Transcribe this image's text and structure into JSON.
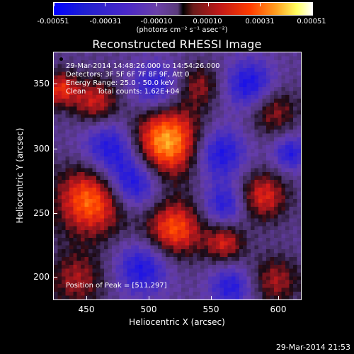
{
  "colorbar": {
    "tick_labels": [
      "-0.00051",
      "-0.00031",
      "-0.00010",
      "0.00010",
      "0.00031",
      "0.00051"
    ],
    "units": "(photons cm⁻² s⁻¹ asec⁻²)"
  },
  "title": "Reconstructed RHESSI Image",
  "annotations": {
    "time_range": "29-Mar-2014 14:48:26.000 to 14:54:26.000",
    "detectors": "Detectors: 3F 5F 6F 7F 8F 9F, Att 0",
    "energy": "Energy Range: 25.0 - 50.0 keV",
    "method": "Clean     Total counts: 1.62E+04",
    "peak": "Position of Peak = [511,297]"
  },
  "axes": {
    "xlabel": "Heliocentric X (arcsec)",
    "ylabel": "Heliocentric Y (arcsec)",
    "xticks": [
      "450",
      "500",
      "550",
      "600"
    ],
    "yticks": [
      "350",
      "300",
      "250",
      "200"
    ]
  },
  "footer": "29-Mar-2014 21:53",
  "image": {
    "xlim": [
      425,
      620
    ],
    "ylim": [
      180,
      376
    ],
    "blobs": [
      {
        "x": 514,
        "y": 305,
        "a": 1.0,
        "s": 20
      },
      {
        "x": 455,
        "y": 259,
        "a": 0.85,
        "s": 20
      },
      {
        "x": 520,
        "y": 236,
        "a": 0.75,
        "s": 16
      },
      {
        "x": 458,
        "y": 337,
        "a": 0.55,
        "s": 13
      },
      {
        "x": 590,
        "y": 262,
        "a": 0.6,
        "s": 14
      },
      {
        "x": 598,
        "y": 330,
        "a": 0.45,
        "s": 14
      },
      {
        "x": 540,
        "y": 350,
        "a": 0.4,
        "s": 12
      },
      {
        "x": 443,
        "y": 196,
        "a": 0.45,
        "s": 16
      },
      {
        "x": 600,
        "y": 195,
        "a": 0.45,
        "s": 14
      },
      {
        "x": 560,
        "y": 225,
        "a": 0.55,
        "s": 11
      },
      {
        "x": 430,
        "y": 347,
        "a": 0.6,
        "s": 10
      },
      {
        "x": 487,
        "y": 272,
        "a": -0.7,
        "s": 15
      },
      {
        "x": 555,
        "y": 296,
        "a": -0.6,
        "s": 15
      },
      {
        "x": 470,
        "y": 300,
        "a": -0.6,
        "s": 16
      },
      {
        "x": 505,
        "y": 348,
        "a": -0.5,
        "s": 14
      },
      {
        "x": 580,
        "y": 350,
        "a": -0.6,
        "s": 14
      },
      {
        "x": 560,
        "y": 255,
        "a": -0.5,
        "s": 12
      },
      {
        "x": 495,
        "y": 205,
        "a": -0.55,
        "s": 15
      },
      {
        "x": 565,
        "y": 190,
        "a": -0.5,
        "s": 12
      },
      {
        "x": 612,
        "y": 296,
        "a": -0.5,
        "s": 10
      }
    ]
  }
}
